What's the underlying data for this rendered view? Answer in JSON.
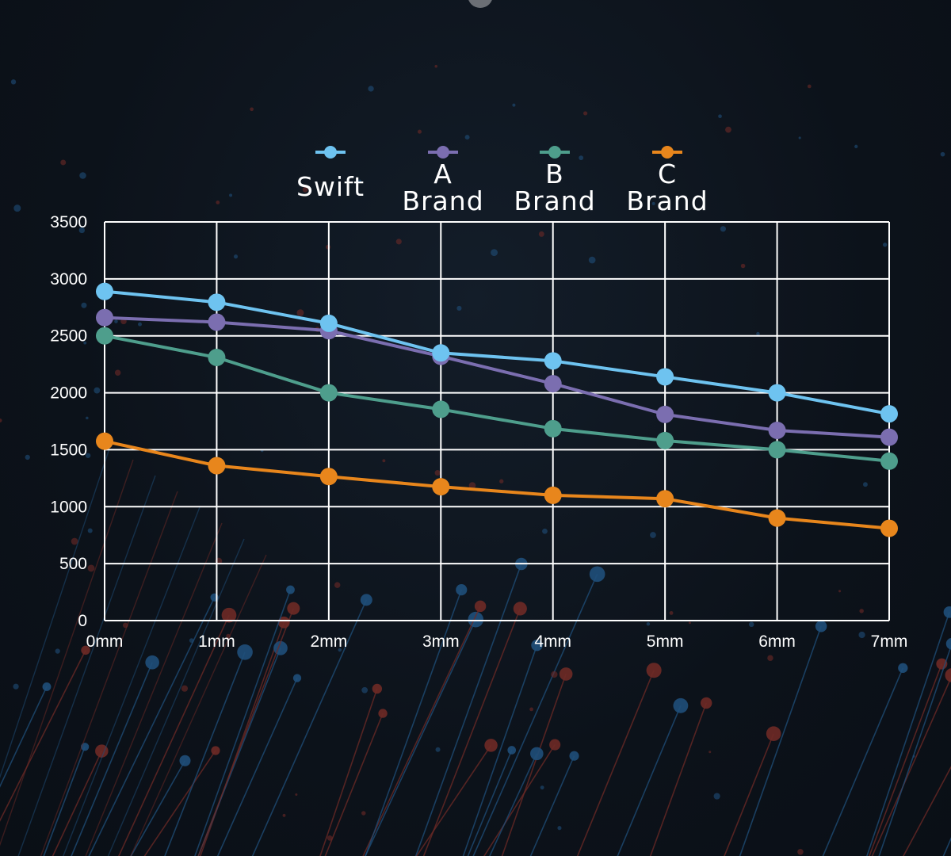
{
  "chart_data": {
    "type": "line",
    "x": [
      "0mm",
      "1mm",
      "2mm",
      "3mm",
      "4mm",
      "5mm",
      "6mm",
      "7mm"
    ],
    "ylim": [
      0,
      3500
    ],
    "yticks": [
      0,
      500,
      1000,
      1500,
      2000,
      2500,
      3000,
      3500
    ],
    "grid": true,
    "legend_position": "top-center",
    "series": [
      {
        "name": "Swift",
        "color": "#6ec3f0",
        "values": [
          2890,
          2795,
          2610,
          2350,
          2280,
          2140,
          2000,
          1815
        ]
      },
      {
        "name": "A Brand",
        "color": "#7b6eb0",
        "values": [
          2660,
          2620,
          2545,
          2320,
          2080,
          1810,
          1670,
          1610
        ]
      },
      {
        "name": "B Brand",
        "color": "#4e9e8c",
        "values": [
          2500,
          2310,
          2000,
          1855,
          1685,
          1580,
          1500,
          1400
        ]
      },
      {
        "name": "C Brand",
        "color": "#e8861c",
        "values": [
          1575,
          1360,
          1265,
          1175,
          1100,
          1070,
          900,
          810
        ]
      }
    ]
  }
}
